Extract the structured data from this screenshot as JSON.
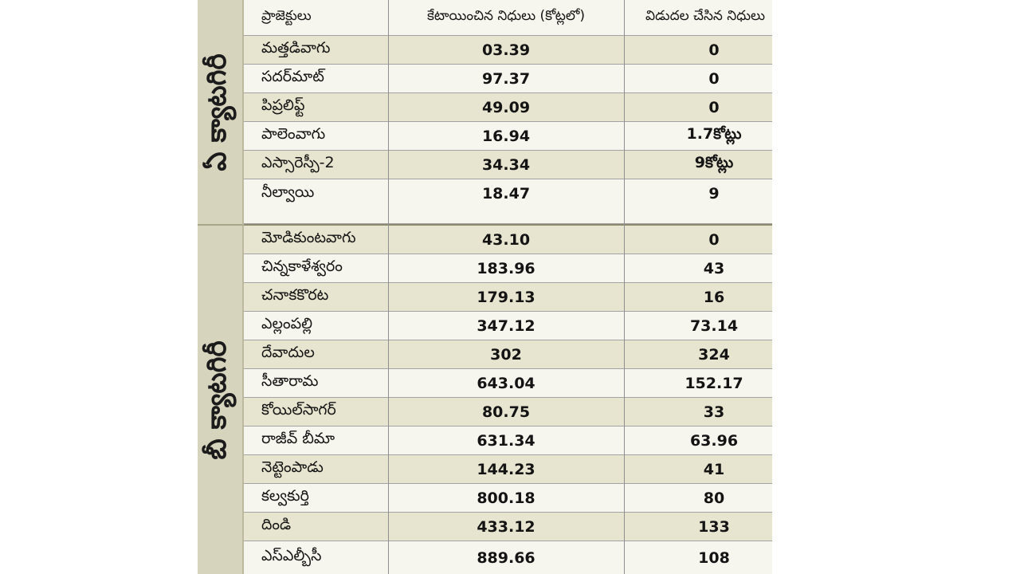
{
  "table": {
    "headers": [
      "ప్రాజెక్టులు",
      "కేటాయించిన నిధులు (కోట్లలో)",
      "విడుదల చేసిన నిధులు"
    ],
    "groups": [
      {
        "label": "ఏ క్యాటగిరీ",
        "rows": [
          [
            "మత్తడివాగు",
            "03.39",
            "0"
          ],
          [
            "సదర్‌మాట్",
            "97.37",
            "0"
          ],
          [
            "పిప్రలిఫ్ట్",
            "49.09",
            "0"
          ],
          [
            "పాలెంవాగు",
            "16.94",
            "1.7కోట్లు"
          ],
          [
            "ఎస్సారెస్పీ-2",
            "34.34",
            "9కోట్లు"
          ],
          [
            "నీల్వాయి",
            "18.47",
            "9"
          ]
        ]
      },
      {
        "label": "బీ క్యాటగిరీ",
        "rows": [
          [
            "మోడికుంటవాగు",
            "43.10",
            "0"
          ],
          [
            "చిన్నకాళేశ్వరం",
            "183.96",
            "43"
          ],
          [
            "చనాకకొరట",
            "179.13",
            "16"
          ],
          [
            "ఎల్లంపల్లి",
            "347.12",
            "73.14"
          ],
          [
            "దేవాదుల",
            "302",
            "324"
          ],
          [
            "సీతారామ",
            "643.04",
            "152.17"
          ],
          [
            "కోయిల్‌సాగర్",
            "80.75",
            "33"
          ],
          [
            "రాజీవ్ బీమా",
            "631.34",
            "63.96"
          ],
          [
            "నెట్టెంపాడు",
            "144.23",
            "41"
          ],
          [
            "కల్వకుర్తి",
            "800.18",
            "80"
          ],
          [
            "దిండి",
            "433.12",
            "133"
          ],
          [
            "ఎస్ఎల్బీసీ",
            "889.66",
            "108"
          ]
        ]
      }
    ]
  }
}
